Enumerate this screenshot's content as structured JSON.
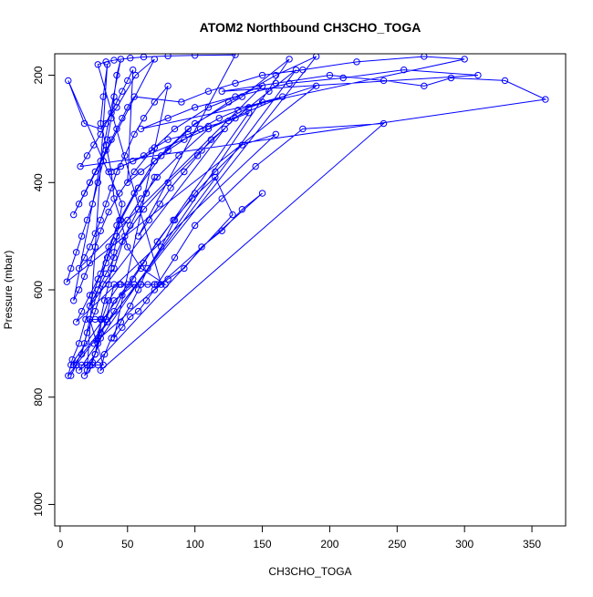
{
  "chart_data": {
    "type": "scatter",
    "title": "ATOM2 Northbound CH3CHO_TOGA",
    "xlabel": "CH3CHO_TOGA",
    "ylabel": "Pressure (mbar)",
    "xlim": [
      -4,
      375
    ],
    "ylim": [
      1040,
      160
    ],
    "y_reversed": true,
    "grid": false,
    "legend": "none",
    "x_ticks": [
      0,
      50,
      100,
      150,
      200,
      250,
      300,
      350
    ],
    "x_tick_labels": [
      "0",
      "50",
      "100",
      "150",
      "200",
      "250",
      "300",
      "350"
    ],
    "y_ticks": [
      200,
      400,
      600,
      800,
      1000
    ],
    "y_tick_labels": [
      "200",
      "400",
      "600",
      "800",
      "1000"
    ],
    "series": [
      {
        "color": "#0000ff",
        "marker": "open-circle",
        "connect": true,
        "points": [
          [
            8,
            760
          ],
          [
            12,
            740
          ],
          [
            18,
            700
          ],
          [
            22,
            655
          ],
          [
            28,
            600
          ],
          [
            35,
            540
          ],
          [
            42,
            480
          ],
          [
            55,
            420
          ],
          [
            70,
            360
          ],
          [
            95,
            300
          ],
          [
            125,
            250
          ],
          [
            160,
            200
          ],
          [
            190,
            165
          ],
          [
            10,
            740
          ],
          [
            16,
            720
          ],
          [
            20,
            680
          ],
          [
            26,
            640
          ],
          [
            32,
            590
          ],
          [
            40,
            560
          ],
          [
            48,
            500
          ],
          [
            62,
            450
          ],
          [
            80,
            400
          ],
          [
            105,
            340
          ],
          [
            130,
            280
          ],
          [
            155,
            230
          ],
          [
            175,
            190
          ],
          [
            6,
            760
          ],
          [
            9,
            730
          ],
          [
            14,
            700
          ],
          [
            19,
            655
          ],
          [
            24,
            610
          ],
          [
            30,
            570
          ],
          [
            36,
            520
          ],
          [
            45,
            470
          ],
          [
            58,
            410
          ],
          [
            75,
            350
          ],
          [
            100,
            290
          ],
          [
            135,
            240
          ],
          [
            170,
            170
          ],
          [
            14,
            750
          ],
          [
            20,
            740
          ],
          [
            26,
            720
          ],
          [
            30,
            690
          ],
          [
            34,
            655
          ],
          [
            40,
            620
          ],
          [
            55,
            590
          ],
          [
            70,
            590
          ],
          [
            78,
            590
          ],
          [
            60,
            560
          ],
          [
            50,
            520
          ],
          [
            45,
            470
          ],
          [
            40,
            430
          ],
          [
            38,
            380
          ],
          [
            34,
            330
          ],
          [
            30,
            290
          ],
          [
            32,
            240
          ],
          [
            35,
            180
          ],
          [
            20,
            750
          ],
          [
            24,
            735
          ],
          [
            28,
            700
          ],
          [
            31,
            655
          ],
          [
            36,
            620
          ],
          [
            44,
            590
          ],
          [
            60,
            590
          ],
          [
            72,
            590
          ],
          [
            85,
            540
          ],
          [
            100,
            480
          ],
          [
            120,
            430
          ],
          [
            145,
            370
          ],
          [
            180,
            300
          ],
          [
            240,
            290
          ],
          [
            30,
            750
          ],
          [
            33,
            720
          ],
          [
            38,
            690
          ],
          [
            45,
            660
          ],
          [
            52,
            630
          ],
          [
            58,
            600
          ],
          [
            65,
            560
          ],
          [
            75,
            520
          ],
          [
            85,
            470
          ],
          [
            100,
            420
          ],
          [
            115,
            380
          ],
          [
            135,
            330
          ],
          [
            160,
            310
          ],
          [
            12,
            660
          ],
          [
            16,
            640
          ],
          [
            22,
            610
          ],
          [
            28,
            580
          ],
          [
            34,
            550
          ],
          [
            40,
            510
          ],
          [
            50,
            470
          ],
          [
            60,
            430
          ],
          [
            72,
            390
          ],
          [
            88,
            350
          ],
          [
            110,
            300
          ],
          [
            140,
            260
          ],
          [
            190,
            220
          ],
          [
            5,
            585
          ],
          [
            8,
            560
          ],
          [
            12,
            530
          ],
          [
            16,
            500
          ],
          [
            20,
            470
          ],
          [
            24,
            440
          ],
          [
            28,
            400
          ],
          [
            32,
            360
          ],
          [
            35,
            320
          ],
          [
            38,
            280
          ],
          [
            40,
            240
          ],
          [
            42,
            200
          ],
          [
            45,
            170
          ],
          [
            10,
            620
          ],
          [
            14,
            600
          ],
          [
            18,
            575
          ],
          [
            22,
            550
          ],
          [
            26,
            520
          ],
          [
            30,
            490
          ],
          [
            36,
            455
          ],
          [
            44,
            420
          ],
          [
            55,
            380
          ],
          [
            68,
            340
          ],
          [
            85,
            300
          ],
          [
            110,
            260
          ],
          [
            150,
            220
          ],
          [
            14,
            560
          ],
          [
            18,
            540
          ],
          [
            22,
            520
          ],
          [
            26,
            495
          ],
          [
            30,
            470
          ],
          [
            34,
            440
          ],
          [
            38,
            410
          ],
          [
            42,
            380
          ],
          [
            48,
            350
          ],
          [
            55,
            310
          ],
          [
            62,
            280
          ],
          [
            70,
            250
          ],
          [
            80,
            220
          ],
          [
            40,
            690
          ],
          [
            46,
            670
          ],
          [
            52,
            650
          ],
          [
            58,
            640
          ],
          [
            64,
            620
          ],
          [
            70,
            600
          ],
          [
            80,
            580
          ],
          [
            92,
            560
          ],
          [
            105,
            520
          ],
          [
            120,
            490
          ],
          [
            135,
            450
          ],
          [
            150,
            420
          ],
          [
            25,
            700
          ],
          [
            30,
            680
          ],
          [
            35,
            660
          ],
          [
            40,
            640
          ],
          [
            46,
            610
          ],
          [
            54,
            580
          ],
          [
            62,
            550
          ],
          [
            72,
            510
          ],
          [
            84,
            470
          ],
          [
            98,
            430
          ],
          [
            115,
            390
          ],
          [
            128,
            460
          ],
          [
            18,
            760
          ],
          [
            22,
            740
          ],
          [
            26,
            720
          ],
          [
            28,
            690
          ],
          [
            30,
            655
          ],
          [
            33,
            620
          ],
          [
            36,
            590
          ],
          [
            38,
            560
          ],
          [
            40,
            530
          ],
          [
            42,
            500
          ],
          [
            44,
            470
          ],
          [
            46,
            440
          ],
          [
            6,
            210
          ],
          [
            18,
            290
          ],
          [
            30,
            300
          ],
          [
            42,
            260
          ],
          [
            56,
            200
          ],
          [
            70,
            170
          ],
          [
            10,
            460
          ],
          [
            14,
            440
          ],
          [
            18,
            420
          ],
          [
            22,
            400
          ],
          [
            26,
            380
          ],
          [
            30,
            360
          ],
          [
            34,
            340
          ],
          [
            38,
            320
          ],
          [
            42,
            300
          ],
          [
            46,
            280
          ],
          [
            50,
            260
          ],
          [
            55,
            240
          ],
          [
            90,
            250
          ],
          [
            110,
            230
          ],
          [
            130,
            215
          ],
          [
            150,
            200
          ],
          [
            180,
            190
          ],
          [
            220,
            175
          ],
          [
            270,
            165
          ],
          [
            300,
            170
          ],
          [
            60,
            300
          ],
          [
            80,
            280
          ],
          [
            100,
            260
          ],
          [
            130,
            240
          ],
          [
            170,
            215
          ],
          [
            210,
            205
          ],
          [
            255,
            190
          ],
          [
            310,
            200
          ],
          [
            120,
            230
          ],
          [
            160,
            215
          ],
          [
            200,
            200
          ],
          [
            240,
            210
          ],
          [
            270,
            220
          ],
          [
            290,
            205
          ],
          [
            330,
            210
          ],
          [
            360,
            245
          ],
          [
            15,
            370
          ],
          [
            20,
            350
          ],
          [
            25,
            330
          ],
          [
            30,
            310
          ],
          [
            34,
            290
          ],
          [
            38,
            270
          ],
          [
            42,
            250
          ],
          [
            46,
            230
          ],
          [
            50,
            210
          ],
          [
            54,
            190
          ],
          [
            50,
            400
          ],
          [
            60,
            380
          ],
          [
            70,
            360
          ],
          [
            80,
            340
          ],
          [
            92,
            320
          ],
          [
            104,
            300
          ],
          [
            118,
            280
          ],
          [
            132,
            265
          ],
          [
            150,
            250
          ],
          [
            165,
            240
          ],
          [
            36,
            380
          ],
          [
            45,
            370
          ],
          [
            54,
            360
          ],
          [
            62,
            350
          ],
          [
            70,
            335
          ],
          [
            80,
            320
          ],
          [
            95,
            310
          ],
          [
            110,
            295
          ],
          [
            125,
            285
          ],
          [
            140,
            270
          ],
          [
            8,
            740
          ],
          [
            12,
            740
          ],
          [
            16,
            740
          ],
          [
            20,
            740
          ],
          [
            24,
            740
          ],
          [
            28,
            740
          ],
          [
            32,
            740
          ],
          [
            22,
            655
          ],
          [
            26,
            655
          ],
          [
            30,
            655
          ],
          [
            34,
            655
          ],
          [
            40,
            590
          ],
          [
            45,
            590
          ],
          [
            50,
            590
          ],
          [
            55,
            590
          ],
          [
            60,
            590
          ],
          [
            65,
            590
          ],
          [
            70,
            590
          ],
          [
            75,
            590
          ],
          [
            28,
            180
          ],
          [
            34,
            175
          ],
          [
            40,
            172
          ],
          [
            52,
            168
          ],
          [
            62,
            166
          ],
          [
            80,
            164
          ],
          [
            100,
            163
          ],
          [
            130,
            162
          ],
          [
            58,
            500
          ],
          [
            66,
            470
          ],
          [
            74,
            440
          ],
          [
            82,
            410
          ],
          [
            92,
            380
          ],
          [
            102,
            350
          ],
          [
            112,
            320
          ],
          [
            122,
            300
          ],
          [
            22,
            630
          ],
          [
            28,
            600
          ],
          [
            34,
            570
          ],
          [
            40,
            540
          ],
          [
            46,
            510
          ],
          [
            52,
            480
          ],
          [
            58,
            450
          ],
          [
            64,
            420
          ],
          [
            70,
            390
          ]
        ]
      }
    ]
  }
}
